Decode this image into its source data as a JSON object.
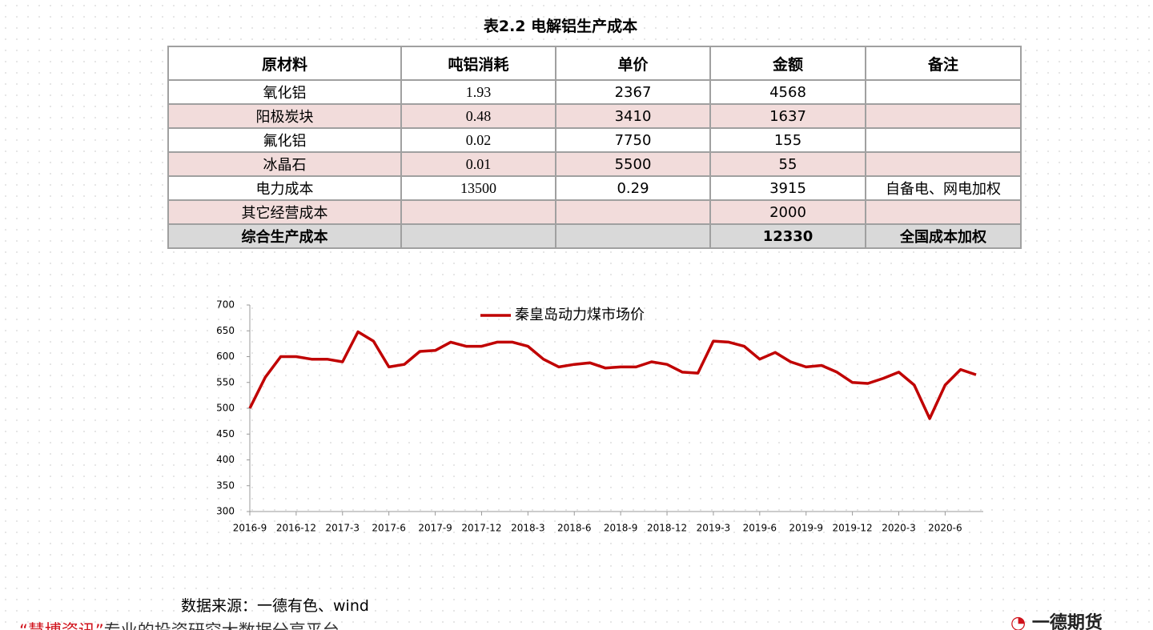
{
  "title": "表2.2 电解铝生产成本",
  "table": {
    "header": [
      "原材料",
      "吨铝消耗",
      "单价",
      "金额",
      "备注"
    ],
    "rows": [
      [
        "氧化铝",
        1.93,
        2367,
        4568,
        null
      ],
      [
        "阳极炭块",
        0.48,
        3410,
        1637,
        null
      ],
      [
        "氟化铝",
        0.02,
        7750,
        155,
        null
      ],
      [
        "冰晶石",
        0.01,
        5500,
        55,
        null
      ],
      [
        "电力成本",
        13500,
        0.29,
        3915,
        "自备电、网电加权"
      ],
      [
        "其它经营成本",
        null,
        null,
        2000,
        null
      ],
      [
        "综合生产成本",
        null,
        null,
        12330,
        "全国成本加权"
      ]
    ]
  },
  "chart_data": {
    "type": "line",
    "x": [
      "2016-9",
      null,
      null,
      "2016-12",
      null,
      null,
      "2017-3",
      null,
      null,
      "2017-6",
      null,
      null,
      "2017-9",
      null,
      null,
      "2017-12",
      null,
      null,
      "2018-3",
      null,
      null,
      "2018-6",
      null,
      null,
      "2018-9",
      null,
      null,
      "2018-12",
      null,
      null,
      "2019-3",
      null,
      null,
      "2019-6",
      null,
      null,
      "2019-9",
      null,
      null,
      "2019-12",
      null,
      null,
      "2020-3",
      null,
      null,
      "2020-6",
      null,
      null
    ],
    "series": [
      {
        "name": "秦皇岛动力煤市场价",
        "color": "#c00000",
        "values": [
          500,
          560,
          600,
          600,
          595,
          595,
          590,
          648,
          630,
          580,
          585,
          610,
          612,
          628,
          620,
          620,
          628,
          628,
          620,
          595,
          580,
          585,
          588,
          578,
          580,
          580,
          590,
          585,
          570,
          568,
          630,
          628,
          620,
          595,
          608,
          590,
          580,
          583,
          570,
          550,
          548,
          558,
          570,
          545,
          480,
          545,
          575,
          565
        ]
      }
    ],
    "ylim": [
      300,
      700
    ],
    "yticks": [
      300,
      350,
      400,
      450,
      500,
      550,
      600,
      650,
      700
    ]
  },
  "source": "数据来源：一德有色、wind",
  "footer": {
    "brand": "“慧博资讯”",
    "text": "专业的投资研究大数据分享平台"
  },
  "logo": "一德期货"
}
